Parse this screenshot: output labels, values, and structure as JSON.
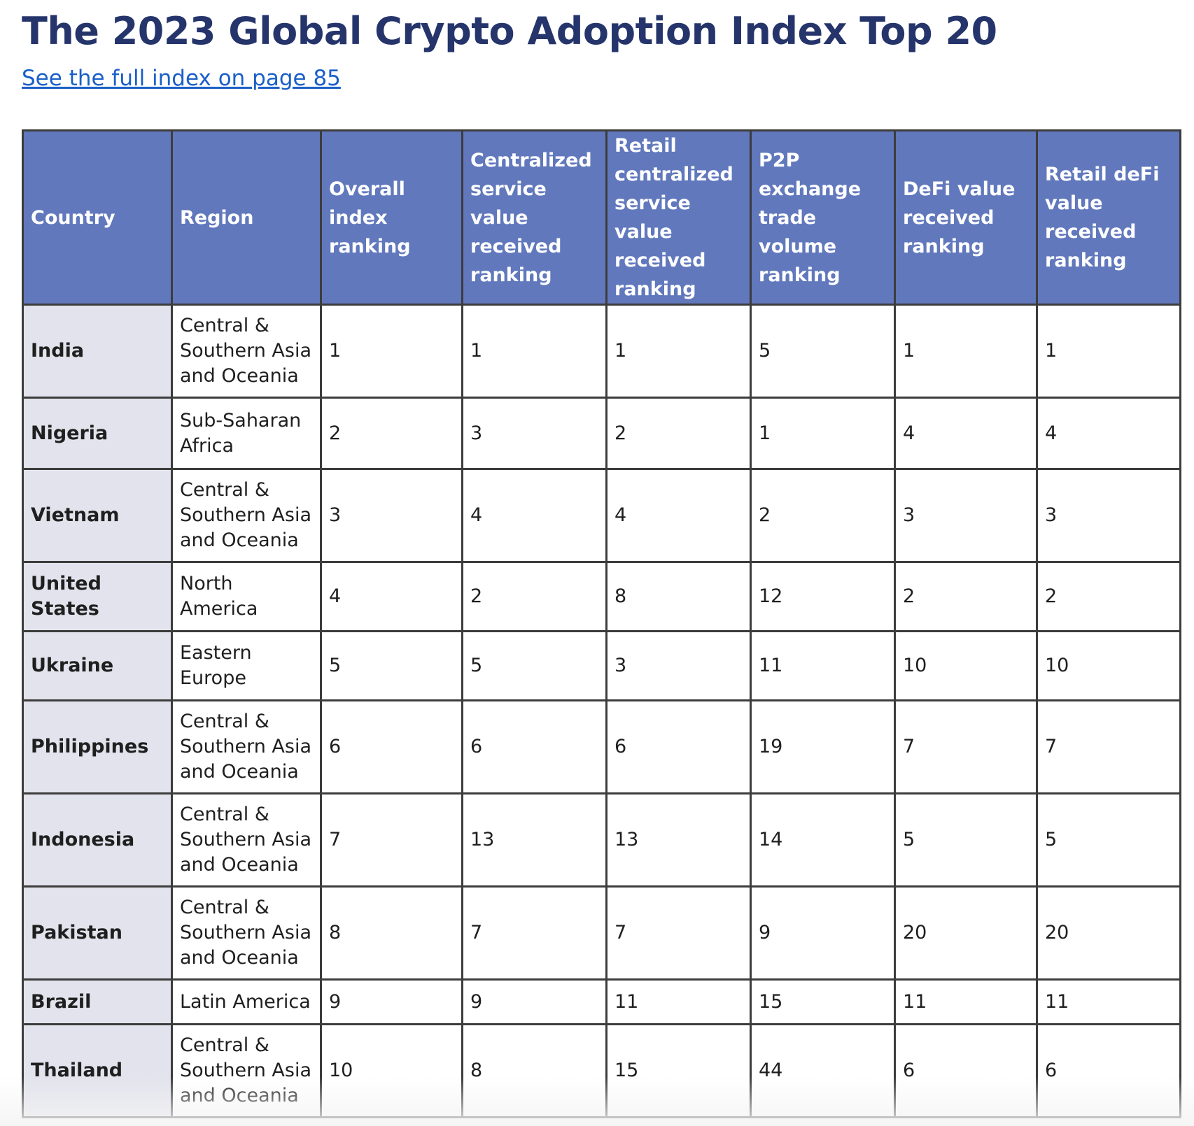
{
  "title": "The 2023 Global Crypto Adoption Index Top 20",
  "link_text": "See the full index on page 85",
  "table": {
    "headers": [
      "Country",
      "Region",
      "Overall index ranking",
      "Centralized service value received ranking",
      "Retail centralized service value received ranking",
      "P2P exchange trade volume ranking",
      "DeFi value received ranking",
      "Retail deFi value received ranking"
    ],
    "rows": [
      {
        "country": "India",
        "region": "Central & Southern Asia and Oceania",
        "overall": "1",
        "centralized": "1",
        "retail_centralized": "1",
        "p2p": "5",
        "defi": "1",
        "retail_defi": "1"
      },
      {
        "country": "Nigeria",
        "region": "Sub-Saharan Africa",
        "overall": "2",
        "centralized": "3",
        "retail_centralized": "2",
        "p2p": "1",
        "defi": "4",
        "retail_defi": "4"
      },
      {
        "country": "Vietnam",
        "region": "Central & Southern Asia and Oceania",
        "overall": "3",
        "centralized": "4",
        "retail_centralized": "4",
        "p2p": "2",
        "defi": "3",
        "retail_defi": "3"
      },
      {
        "country": "United States",
        "region": "North America",
        "overall": "4",
        "centralized": "2",
        "retail_centralized": "8",
        "p2p": "12",
        "defi": "2",
        "retail_defi": "2"
      },
      {
        "country": "Ukraine",
        "region": "Eastern Europe",
        "overall": "5",
        "centralized": "5",
        "retail_centralized": "3",
        "p2p": "11",
        "defi": "10",
        "retail_defi": "10"
      },
      {
        "country": "Philippines",
        "region": "Central & Southern Asia and Oceania",
        "overall": "6",
        "centralized": "6",
        "retail_centralized": "6",
        "p2p": "19",
        "defi": "7",
        "retail_defi": "7"
      },
      {
        "country": "Indonesia",
        "region": "Central & Southern Asia and Oceania",
        "overall": "7",
        "centralized": "13",
        "retail_centralized": "13",
        "p2p": "14",
        "defi": "5",
        "retail_defi": "5"
      },
      {
        "country": "Pakistan",
        "region": "Central & Southern Asia and Oceania",
        "overall": "8",
        "centralized": "7",
        "retail_centralized": "7",
        "p2p": "9",
        "defi": "20",
        "retail_defi": "20"
      },
      {
        "country": "Brazil",
        "region": "Latin America",
        "overall": "9",
        "centralized": "9",
        "retail_centralized": "11",
        "p2p": "15",
        "defi": "11",
        "retail_defi": "11"
      },
      {
        "country": "Thailand",
        "region": "Central & Southern Asia and Oceania",
        "overall": "10",
        "centralized": "8",
        "retail_centralized": "15",
        "p2p": "44",
        "defi": "6",
        "retail_defi": "6"
      }
    ]
  }
}
